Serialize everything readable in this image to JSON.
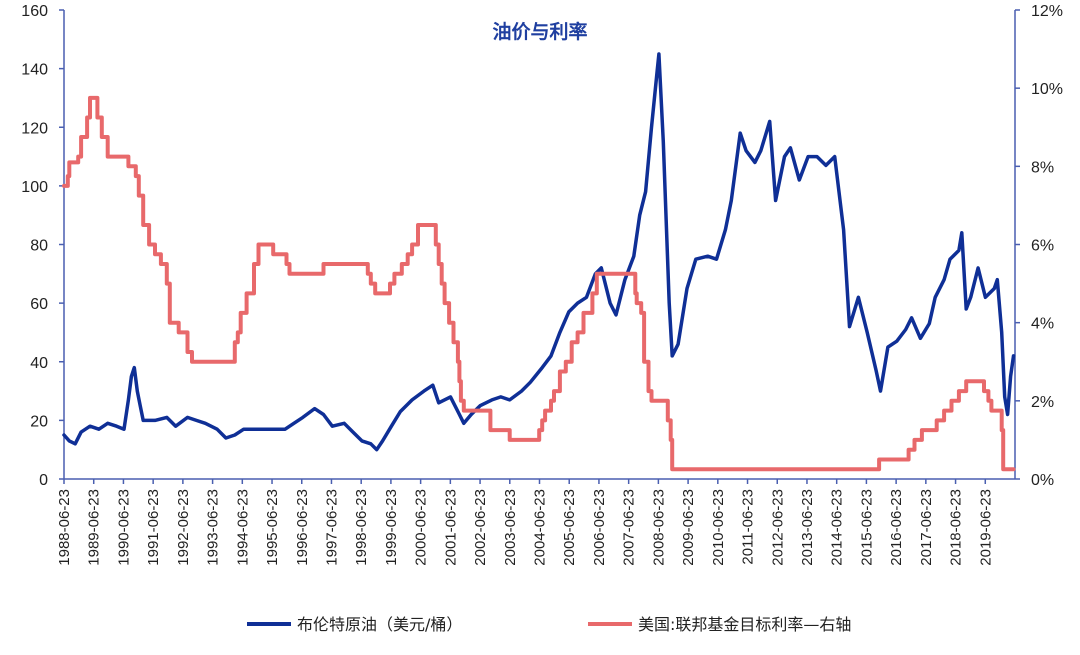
{
  "chart_data": {
    "type": "line",
    "title": "油价与利率",
    "x_tick_labels": [
      "1988-06-23",
      "1989-06-23",
      "1990-06-23",
      "1991-06-23",
      "1992-06-23",
      "1993-06-23",
      "1994-06-23",
      "1995-06-23",
      "1996-06-23",
      "1997-06-23",
      "1998-06-23",
      "1999-06-23",
      "2000-06-23",
      "2001-06-23",
      "2002-06-23",
      "2003-06-23",
      "2004-06-23",
      "2005-06-23",
      "2006-06-23",
      "2007-06-23",
      "2008-06-23",
      "2009-06-23",
      "2010-06-23",
      "2011-06-23",
      "2012-06-23",
      "2013-06-23",
      "2014-06-23",
      "2015-06-23",
      "2016-06-23",
      "2017-06-23",
      "2018-06-23",
      "2019-06-23"
    ],
    "y_left": {
      "ylim": [
        0,
        160
      ],
      "ticks": [
        "0",
        "20",
        "40",
        "60",
        "80",
        "100",
        "120",
        "140",
        "160"
      ]
    },
    "y_right": {
      "ylim": [
        0,
        12
      ],
      "ticks": [
        "0%",
        "2%",
        "4%",
        "6%",
        "8%",
        "10%",
        "12%"
      ]
    },
    "x_range": [
      1988.42,
      2020.6
    ],
    "legend_placement": "bottom",
    "grid": false,
    "series": [
      {
        "name": "布伦特原油（美元/桶）",
        "axis": "left",
        "color": "#0f2f96",
        "points": [
          [
            1988.42,
            15
          ],
          [
            1988.6,
            13
          ],
          [
            1988.8,
            12
          ],
          [
            1989.0,
            16
          ],
          [
            1989.3,
            18
          ],
          [
            1989.6,
            17
          ],
          [
            1989.9,
            19
          ],
          [
            1990.2,
            18
          ],
          [
            1990.45,
            17
          ],
          [
            1990.6,
            27
          ],
          [
            1990.7,
            35
          ],
          [
            1990.8,
            38
          ],
          [
            1990.9,
            30
          ],
          [
            1991.0,
            25
          ],
          [
            1991.1,
            20
          ],
          [
            1991.5,
            20
          ],
          [
            1991.9,
            21
          ],
          [
            1992.2,
            18
          ],
          [
            1992.6,
            21
          ],
          [
            1992.9,
            20
          ],
          [
            1993.2,
            19
          ],
          [
            1993.6,
            17
          ],
          [
            1993.9,
            14
          ],
          [
            1994.2,
            15
          ],
          [
            1994.5,
            17
          ],
          [
            1994.8,
            17
          ],
          [
            1995.2,
            17
          ],
          [
            1995.6,
            17
          ],
          [
            1995.9,
            17
          ],
          [
            1996.2,
            19
          ],
          [
            1996.5,
            21
          ],
          [
            1996.9,
            24
          ],
          [
            1997.2,
            22
          ],
          [
            1997.5,
            18
          ],
          [
            1997.9,
            19
          ],
          [
            1998.2,
            16
          ],
          [
            1998.5,
            13
          ],
          [
            1998.8,
            12
          ],
          [
            1999.0,
            10
          ],
          [
            1999.2,
            13
          ],
          [
            1999.5,
            18
          ],
          [
            1999.8,
            23
          ],
          [
            2000.2,
            27
          ],
          [
            2000.6,
            30
          ],
          [
            2000.9,
            32
          ],
          [
            2001.1,
            26
          ],
          [
            2001.5,
            28
          ],
          [
            2001.8,
            22
          ],
          [
            2001.95,
            19
          ],
          [
            2002.2,
            22
          ],
          [
            2002.5,
            25
          ],
          [
            2002.9,
            27
          ],
          [
            2003.2,
            28
          ],
          [
            2003.5,
            27
          ],
          [
            2003.9,
            30
          ],
          [
            2004.2,
            33
          ],
          [
            2004.6,
            38
          ],
          [
            2004.9,
            42
          ],
          [
            2005.2,
            50
          ],
          [
            2005.5,
            57
          ],
          [
            2005.8,
            60
          ],
          [
            2006.1,
            62
          ],
          [
            2006.4,
            70
          ],
          [
            2006.6,
            72
          ],
          [
            2006.9,
            60
          ],
          [
            2007.1,
            56
          ],
          [
            2007.4,
            68
          ],
          [
            2007.7,
            76
          ],
          [
            2007.9,
            90
          ],
          [
            2008.1,
            98
          ],
          [
            2008.3,
            120
          ],
          [
            2008.5,
            140
          ],
          [
            2008.55,
            145
          ],
          [
            2008.7,
            115
          ],
          [
            2008.9,
            60
          ],
          [
            2009.0,
            42
          ],
          [
            2009.2,
            46
          ],
          [
            2009.5,
            65
          ],
          [
            2009.8,
            75
          ],
          [
            2010.2,
            76
          ],
          [
            2010.5,
            75
          ],
          [
            2010.8,
            85
          ],
          [
            2011.0,
            95
          ],
          [
            2011.3,
            118
          ],
          [
            2011.5,
            112
          ],
          [
            2011.8,
            108
          ],
          [
            2012.0,
            112
          ],
          [
            2012.3,
            122
          ],
          [
            2012.5,
            95
          ],
          [
            2012.8,
            110
          ],
          [
            2013.0,
            113
          ],
          [
            2013.3,
            102
          ],
          [
            2013.6,
            110
          ],
          [
            2013.9,
            110
          ],
          [
            2014.2,
            107
          ],
          [
            2014.5,
            110
          ],
          [
            2014.8,
            85
          ],
          [
            2015.0,
            52
          ],
          [
            2015.3,
            62
          ],
          [
            2015.6,
            50
          ],
          [
            2015.9,
            37
          ],
          [
            2016.05,
            30
          ],
          [
            2016.3,
            45
          ],
          [
            2016.6,
            47
          ],
          [
            2016.9,
            51
          ],
          [
            2017.1,
            55
          ],
          [
            2017.4,
            48
          ],
          [
            2017.7,
            53
          ],
          [
            2017.9,
            62
          ],
          [
            2018.2,
            68
          ],
          [
            2018.4,
            75
          ],
          [
            2018.7,
            78
          ],
          [
            2018.8,
            84
          ],
          [
            2018.95,
            58
          ],
          [
            2019.1,
            62
          ],
          [
            2019.35,
            72
          ],
          [
            2019.6,
            62
          ],
          [
            2019.9,
            65
          ],
          [
            2020.0,
            68
          ],
          [
            2020.15,
            50
          ],
          [
            2020.25,
            28
          ],
          [
            2020.35,
            22
          ],
          [
            2020.45,
            35
          ],
          [
            2020.55,
            42
          ]
        ]
      },
      {
        "name": "美国:联邦基金目标利率—右轴",
        "axis": "right",
        "color": "#e8696b",
        "points": [
          [
            1988.42,
            7.5
          ],
          [
            1988.55,
            7.75
          ],
          [
            1988.6,
            8.1
          ],
          [
            1988.9,
            8.25
          ],
          [
            1989.0,
            8.75
          ],
          [
            1989.2,
            9.25
          ],
          [
            1989.3,
            9.75
          ],
          [
            1989.45,
            9.75
          ],
          [
            1989.55,
            9.25
          ],
          [
            1989.7,
            8.75
          ],
          [
            1989.9,
            8.25
          ],
          [
            1990.4,
            8.25
          ],
          [
            1990.6,
            8.0
          ],
          [
            1990.85,
            7.75
          ],
          [
            1990.95,
            7.25
          ],
          [
            1991.1,
            6.5
          ],
          [
            1991.3,
            6.0
          ],
          [
            1991.5,
            5.75
          ],
          [
            1991.7,
            5.5
          ],
          [
            1991.9,
            5.0
          ],
          [
            1992.0,
            4.0
          ],
          [
            1992.3,
            3.75
          ],
          [
            1992.6,
            3.25
          ],
          [
            1992.75,
            3.0
          ],
          [
            1994.0,
            3.0
          ],
          [
            1994.2,
            3.5
          ],
          [
            1994.3,
            3.75
          ],
          [
            1994.4,
            4.25
          ],
          [
            1994.6,
            4.75
          ],
          [
            1994.85,
            5.5
          ],
          [
            1995.0,
            6.0
          ],
          [
            1995.5,
            5.75
          ],
          [
            1995.95,
            5.5
          ],
          [
            1996.05,
            5.25
          ],
          [
            1997.2,
            5.5
          ],
          [
            1998.7,
            5.25
          ],
          [
            1998.8,
            5.0
          ],
          [
            1998.95,
            4.75
          ],
          [
            1999.45,
            5.0
          ],
          [
            1999.6,
            5.25
          ],
          [
            1999.85,
            5.5
          ],
          [
            2000.05,
            5.75
          ],
          [
            2000.2,
            6.0
          ],
          [
            2000.4,
            6.5
          ],
          [
            2001.0,
            6.0
          ],
          [
            2001.1,
            5.5
          ],
          [
            2001.2,
            5.0
          ],
          [
            2001.3,
            4.5
          ],
          [
            2001.45,
            4.0
          ],
          [
            2001.6,
            3.5
          ],
          [
            2001.75,
            3.0
          ],
          [
            2001.8,
            2.5
          ],
          [
            2001.85,
            2.0
          ],
          [
            2001.95,
            1.75
          ],
          [
            2002.85,
            1.25
          ],
          [
            2003.5,
            1.0
          ],
          [
            2004.5,
            1.25
          ],
          [
            2004.6,
            1.5
          ],
          [
            2004.7,
            1.75
          ],
          [
            2004.9,
            2.0
          ],
          [
            2005.0,
            2.25
          ],
          [
            2005.2,
            2.75
          ],
          [
            2005.4,
            3.0
          ],
          [
            2005.6,
            3.5
          ],
          [
            2005.8,
            3.75
          ],
          [
            2006.0,
            4.25
          ],
          [
            2006.3,
            4.75
          ],
          [
            2006.45,
            5.25
          ],
          [
            2007.7,
            5.25
          ],
          [
            2007.75,
            4.75
          ],
          [
            2007.8,
            4.5
          ],
          [
            2007.95,
            4.25
          ],
          [
            2008.05,
            3.0
          ],
          [
            2008.2,
            2.25
          ],
          [
            2008.3,
            2.0
          ],
          [
            2008.8,
            2.0
          ],
          [
            2008.85,
            1.5
          ],
          [
            2008.95,
            1.0
          ],
          [
            2009.0,
            0.25
          ],
          [
            2015.95,
            0.25
          ],
          [
            2016.0,
            0.5
          ],
          [
            2016.95,
            0.5
          ],
          [
            2017.0,
            0.75
          ],
          [
            2017.2,
            1.0
          ],
          [
            2017.45,
            1.25
          ],
          [
            2017.95,
            1.5
          ],
          [
            2018.2,
            1.75
          ],
          [
            2018.45,
            2.0
          ],
          [
            2018.7,
            2.25
          ],
          [
            2018.95,
            2.5
          ],
          [
            2019.55,
            2.25
          ],
          [
            2019.7,
            2.0
          ],
          [
            2019.8,
            1.75
          ],
          [
            2020.15,
            1.25
          ],
          [
            2020.2,
            0.25
          ],
          [
            2020.55,
            0.25
          ]
        ]
      }
    ]
  }
}
